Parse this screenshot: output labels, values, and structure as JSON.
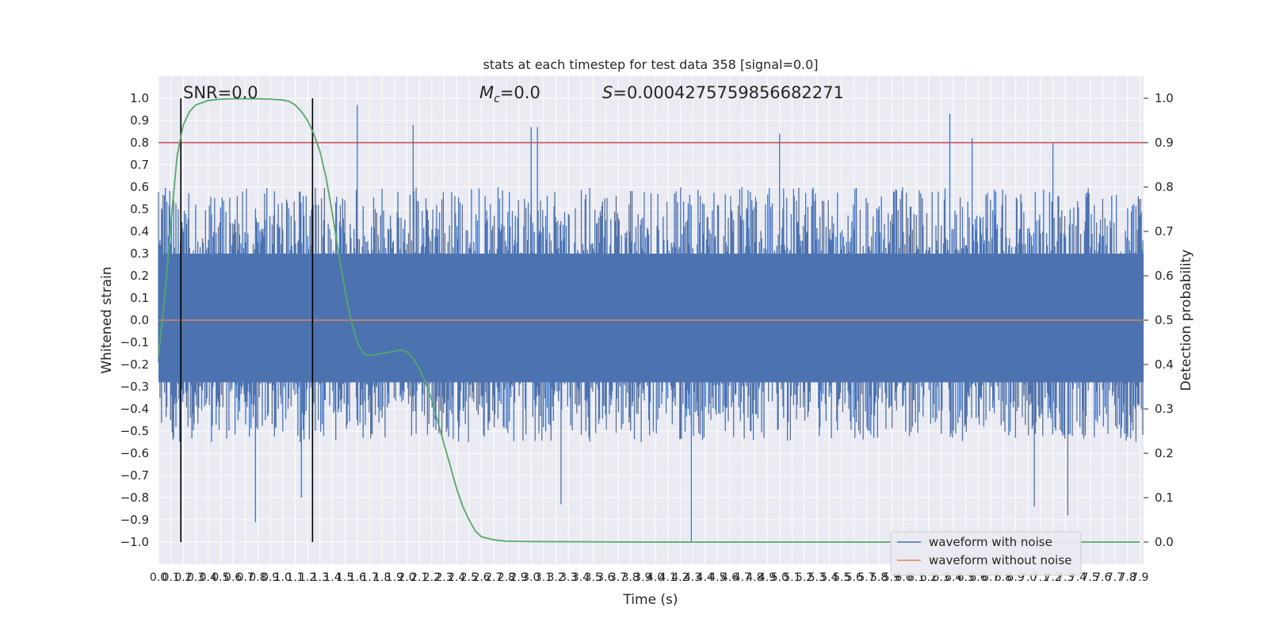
{
  "chart_data": {
    "type": "line",
    "title": "stats at each timestep for test data 358 [signal=0.0]",
    "xlabel": "Time (s)",
    "ylabel": "Whitened strain",
    "ylabel_right": "Detection probability",
    "xlim": [
      0,
      7.93
    ],
    "ylim": [
      -1.1,
      1.1
    ],
    "ylim_right": [
      -0.05,
      1.05
    ],
    "grid": true,
    "legend_position": "lower-right",
    "annotations": {
      "snr": "SNR=0.0",
      "mc_symbol": "M",
      "mc_sub": "c",
      "mc_value": "=0.0",
      "s_symbol": "S",
      "s_value": "=0.0004275759856682271"
    },
    "x_ticks": [
      "0.0",
      "0.1",
      "0.2",
      "0.3",
      "0.4",
      "0.5",
      "0.6",
      "0.7",
      "0.8",
      "0.9",
      "1.0",
      "1.1",
      "1.2",
      "1.3",
      "1.4",
      "1.5",
      "1.6",
      "1.7",
      "1.8",
      "1.9",
      "2.0",
      "2.1",
      "2.2",
      "2.3",
      "2.4",
      "2.5",
      "2.6",
      "2.7",
      "2.8",
      "2.9",
      "3.0",
      "3.1",
      "3.2",
      "3.3",
      "3.4",
      "3.5",
      "3.6",
      "3.7",
      "3.8",
      "3.9",
      "4.0",
      "4.1",
      "4.2",
      "4.3",
      "4.4",
      "4.5",
      "4.6",
      "4.7",
      "4.8",
      "4.9",
      "5.0",
      "5.1",
      "5.2",
      "5.3",
      "5.4",
      "5.5",
      "5.6",
      "5.7",
      "5.8",
      "5.9",
      "6.0",
      "6.1",
      "6.2",
      "6.3",
      "6.4",
      "6.5",
      "6.6",
      "6.7",
      "6.8",
      "6.9",
      "7.0",
      "7.1",
      "7.2",
      "7.3",
      "7.4",
      "7.5",
      "7.6",
      "7.7",
      "7.8",
      "7.9"
    ],
    "y_ticks": [
      "1.0",
      "0.9",
      "0.8",
      "0.7",
      "0.6",
      "0.5",
      "0.4",
      "0.3",
      "0.2",
      "0.1",
      "0.0",
      "−0.1",
      "−0.2",
      "−0.3",
      "−0.4",
      "−0.5",
      "−0.6",
      "−0.7",
      "−0.8",
      "−0.9",
      "−1.0"
    ],
    "y_ticks_right": [
      "1.0",
      "0.9",
      "0.8",
      "0.7",
      "0.6",
      "0.5",
      "0.4",
      "0.3",
      "0.2",
      "0.1",
      "0.0"
    ],
    "vertical_lines_x": [
      0.18,
      1.24
    ],
    "threshold_probability": 0.9,
    "series": [
      {
        "name": "waveform with noise",
        "color": "#4c72b0",
        "envelope_typical_max": 0.6,
        "envelope_typical_min": -0.55,
        "peaks": [
          {
            "x": 1.6,
            "y": 0.97
          },
          {
            "x": 2.05,
            "y": 0.88
          },
          {
            "x": 3.0,
            "y": 0.87
          },
          {
            "x": 3.05,
            "y": 0.87
          },
          {
            "x": 6.37,
            "y": 0.93
          },
          {
            "x": 6.55,
            "y": 0.82
          },
          {
            "x": 5.0,
            "y": 0.84
          },
          {
            "x": 7.2,
            "y": 0.8
          },
          {
            "x": 4.29,
            "y": -1.0
          },
          {
            "x": 0.78,
            "y": -0.91
          },
          {
            "x": 7.32,
            "y": -0.88
          },
          {
            "x": 3.24,
            "y": -0.83
          },
          {
            "x": 7.05,
            "y": -0.84
          },
          {
            "x": 0.18,
            "y": -0.75
          },
          {
            "x": 1.15,
            "y": -0.8
          }
        ]
      },
      {
        "name": "waveform without noise",
        "color": "#dd8452",
        "values_constant": 0.0
      },
      {
        "name": "",
        "axis": "right",
        "color": "#55a868",
        "x": [
          0.0,
          0.05,
          0.1,
          0.15,
          0.2,
          0.25,
          0.3,
          0.35,
          0.4,
          0.5,
          0.6,
          0.7,
          0.8,
          0.9,
          1.0,
          1.05,
          1.1,
          1.15,
          1.2,
          1.25,
          1.3,
          1.35,
          1.4,
          1.45,
          1.5,
          1.55,
          1.6,
          1.65,
          1.7,
          1.8,
          1.9,
          1.95,
          2.0,
          2.05,
          2.1,
          2.15,
          2.2,
          2.25,
          2.3,
          2.35,
          2.4,
          2.45,
          2.5,
          2.55,
          2.6,
          2.7,
          2.8,
          3.0,
          4.0,
          5.0,
          6.0,
          7.0,
          7.9
        ],
        "y": [
          0.42,
          0.55,
          0.72,
          0.87,
          0.94,
          0.97,
          0.985,
          0.99,
          0.995,
          0.998,
          0.999,
          0.999,
          0.999,
          0.998,
          0.996,
          0.993,
          0.985,
          0.97,
          0.95,
          0.92,
          0.88,
          0.82,
          0.74,
          0.65,
          0.57,
          0.5,
          0.45,
          0.425,
          0.42,
          0.425,
          0.43,
          0.433,
          0.428,
          0.415,
          0.39,
          0.36,
          0.32,
          0.27,
          0.22,
          0.17,
          0.12,
          0.08,
          0.05,
          0.025,
          0.012,
          0.005,
          0.002,
          0.001,
          0.0,
          0.0,
          0.0,
          0.0,
          0.0
        ]
      }
    ],
    "threshold_line_color": "#c44e52",
    "vertical_line_color": "#000000"
  }
}
